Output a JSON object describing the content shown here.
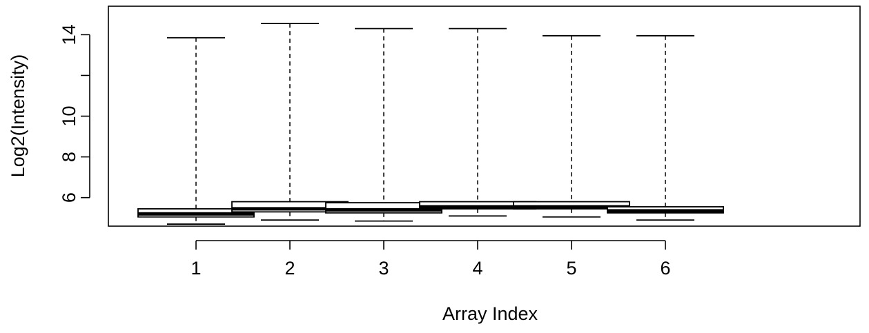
{
  "chart_data": {
    "type": "boxplot",
    "title": "",
    "xlabel": "Array Index",
    "ylabel": "Log2(Intensity)",
    "ylim": [
      4.6,
      15.4
    ],
    "yticks": [
      {
        "value": 6,
        "label": "6"
      },
      {
        "value": 8,
        "label": "8"
      },
      {
        "value": 10,
        "label": "10"
      },
      {
        "value": 12,
        "label": ""
      },
      {
        "value": 14,
        "label": "14"
      }
    ],
    "categories": [
      "1",
      "2",
      "3",
      "4",
      "5",
      "6"
    ],
    "boxes": [
      {
        "category": "1",
        "min": 4.7,
        "q1": 5.05,
        "median": 5.2,
        "q3": 5.45,
        "max": 13.85
      },
      {
        "category": "2",
        "min": 4.9,
        "q1": 5.3,
        "median": 5.45,
        "q3": 5.8,
        "max": 14.55
      },
      {
        "category": "3",
        "min": 4.85,
        "q1": 5.25,
        "median": 5.4,
        "q3": 5.75,
        "max": 14.3
      },
      {
        "category": "4",
        "min": 5.1,
        "q1": 5.45,
        "median": 5.55,
        "q3": 5.8,
        "max": 14.3
      },
      {
        "category": "5",
        "min": 5.05,
        "q1": 5.45,
        "median": 5.55,
        "q3": 5.8,
        "max": 13.95
      },
      {
        "category": "6",
        "min": 4.9,
        "q1": 5.25,
        "median": 5.35,
        "q3": 5.55,
        "max": 13.95
      }
    ],
    "grid": false,
    "legend": "none"
  }
}
